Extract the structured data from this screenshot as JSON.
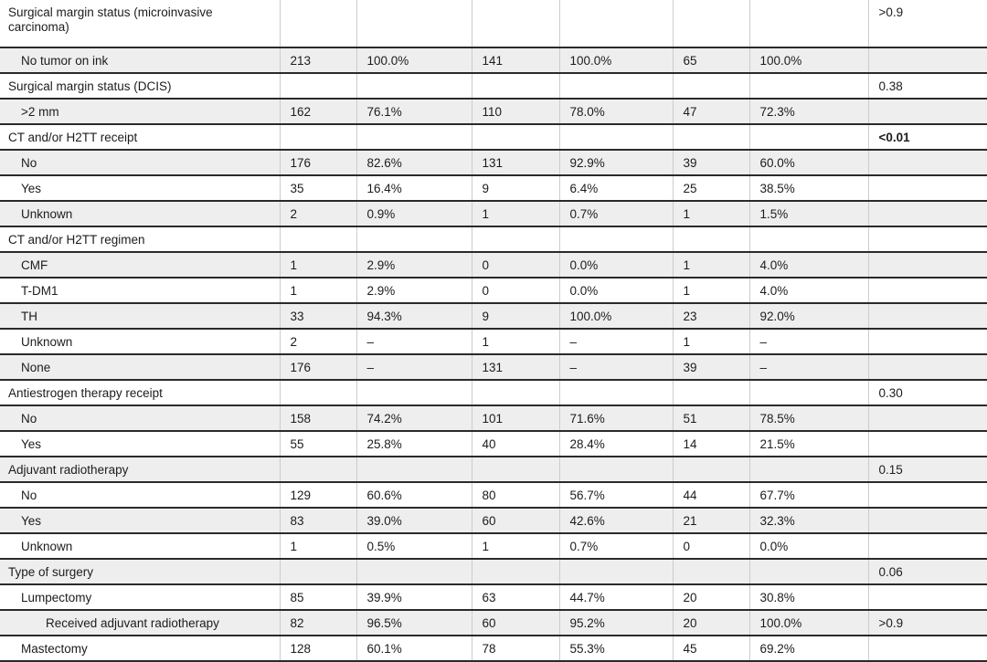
{
  "table": {
    "description_colors": {
      "stripe_background": "#eeeeee",
      "row_rule": "#2a2a2a",
      "column_rule": "#cccccc",
      "text": "#1c1c1c"
    },
    "rows": [
      {
        "label": "Surgical margin status (microinvasive carcinoma)",
        "indent": 0,
        "p": ">0.9",
        "p_bold": false
      },
      {
        "label": "No tumor on ink",
        "indent": 1,
        "values": [
          "213",
          "100.0%",
          "141",
          "100.0%",
          "65",
          "100.0%"
        ]
      },
      {
        "label": "Surgical margin status (DCIS)",
        "indent": 0,
        "p": "0.38",
        "p_bold": false
      },
      {
        "label": ">2 mm",
        "indent": 1,
        "values": [
          "162",
          "76.1%",
          "110",
          "78.0%",
          "47",
          "72.3%"
        ]
      },
      {
        "label": "CT and/or H2TT receipt",
        "indent": 0,
        "p": "<0.01",
        "p_bold": true
      },
      {
        "label": "No",
        "indent": 1,
        "values": [
          "176",
          "82.6%",
          "131",
          "92.9%",
          "39",
          "60.0%"
        ]
      },
      {
        "label": "Yes",
        "indent": 1,
        "values": [
          "35",
          "16.4%",
          "9",
          "6.4%",
          "25",
          "38.5%"
        ]
      },
      {
        "label": "Unknown",
        "indent": 1,
        "values": [
          "2",
          "0.9%",
          "1",
          "0.7%",
          "1",
          "1.5%"
        ]
      },
      {
        "label": "CT and/or H2TT regimen",
        "indent": 0
      },
      {
        "label": "CMF",
        "indent": 1,
        "values": [
          "1",
          "2.9%",
          "0",
          "0.0%",
          "1",
          "4.0%"
        ]
      },
      {
        "label": "T-DM1",
        "indent": 1,
        "values": [
          "1",
          "2.9%",
          "0",
          "0.0%",
          "1",
          "4.0%"
        ]
      },
      {
        "label": "TH",
        "indent": 1,
        "values": [
          "33",
          "94.3%",
          "9",
          "100.0%",
          "23",
          "92.0%"
        ]
      },
      {
        "label": "Unknown",
        "indent": 1,
        "values": [
          "2",
          "–",
          "1",
          "–",
          "1",
          "–"
        ]
      },
      {
        "label": "None",
        "indent": 1,
        "values": [
          "176",
          "–",
          "131",
          "–",
          "39",
          "–"
        ]
      },
      {
        "label": "Antiestrogen therapy receipt",
        "indent": 0,
        "p": "0.30",
        "p_bold": false
      },
      {
        "label": "No",
        "indent": 1,
        "values": [
          "158",
          "74.2%",
          "101",
          "71.6%",
          "51",
          "78.5%"
        ]
      },
      {
        "label": "Yes",
        "indent": 1,
        "values": [
          "55",
          "25.8%",
          "40",
          "28.4%",
          "14",
          "21.5%"
        ]
      },
      {
        "label": "Adjuvant radiotherapy",
        "indent": 0,
        "p": "0.15",
        "p_bold": false
      },
      {
        "label": "No",
        "indent": 1,
        "values": [
          "129",
          "60.6%",
          "80",
          "56.7%",
          "44",
          "67.7%"
        ]
      },
      {
        "label": "Yes",
        "indent": 1,
        "values": [
          "83",
          "39.0%",
          "60",
          "42.6%",
          "21",
          "32.3%"
        ]
      },
      {
        "label": "Unknown",
        "indent": 1,
        "values": [
          "1",
          "0.5%",
          "1",
          "0.7%",
          "0",
          "0.0%"
        ]
      },
      {
        "label": "Type of surgery",
        "indent": 0,
        "p": "0.06",
        "p_bold": false
      },
      {
        "label": "Lumpectomy",
        "indent": 1,
        "values": [
          "85",
          "39.9%",
          "63",
          "44.7%",
          "20",
          "30.8%"
        ]
      },
      {
        "label": "Received adjuvant radiotherapy",
        "indent": 2,
        "values": [
          "82",
          "96.5%",
          "60",
          "95.2%",
          "20",
          "100.0%"
        ],
        "p": ">0.9",
        "p_bold": false
      },
      {
        "label": "Mastectomy",
        "indent": 1,
        "values": [
          "128",
          "60.1%",
          "78",
          "55.3%",
          "45",
          "69.2%"
        ]
      }
    ]
  }
}
